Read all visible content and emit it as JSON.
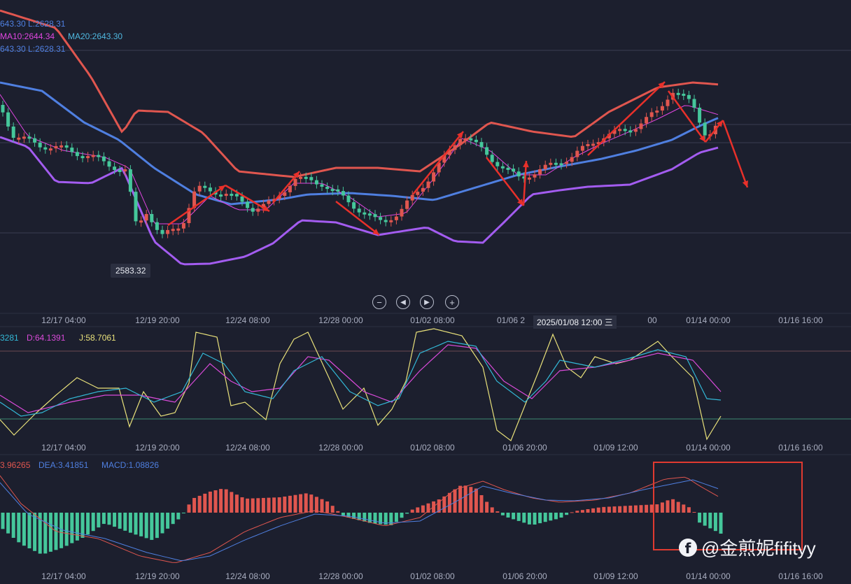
{
  "price_panel": {
    "legend_line1": "643.30  L:2628.31",
    "legend_ma10": "MA10:2644.34",
    "legend_ma20": "MA20:2643.30",
    "legend_line3": "643.30  L:2628.31",
    "low_marker": "2583.32"
  },
  "controls": [
    "zoom-out",
    "step-back",
    "step-forward",
    "zoom-in"
  ],
  "time_axis": {
    "labels": [
      "12/17 04:00",
      "12/19 20:00",
      "12/24 08:00",
      "12/28 00:00",
      "01/02 08:00",
      "01/06 2",
      "01/14 00:00",
      "01/16 16:00"
    ],
    "crosshair_label": "2025/01/08 12:00 三",
    "crosshair_tail": "00"
  },
  "kdj_axis": [
    "12/17 04:00",
    "12/19 20:00",
    "12/24 08:00",
    "12/28 00:00",
    "01/02 08:00",
    "01/06 20:00",
    "01/09 12:00",
    "01/14 00:00",
    "01/16 16:00"
  ],
  "macd_axis": [
    "12/17 04:00",
    "12/19 20:00",
    "12/24 08:00",
    "12/28 00:00",
    "01/02 08:00",
    "01/06 20:00",
    "01/09 12:00",
    "01/14 00:00",
    "01/16 16:00"
  ],
  "kdj_panel": {
    "k": "3281",
    "d": "D:64.1391",
    "j": "J:58.7061"
  },
  "macd_panel": {
    "dif": "3.96265",
    "dea": "DEA:3.41851",
    "macd": "MACD:1.08826"
  },
  "watermark": "@金煎妮fifityy",
  "colors": {
    "bg": "#1c1f2e",
    "up": "#e0564f",
    "down": "#45c79b",
    "upper": "#e0564f",
    "mid": "#4f7fe0",
    "lower": "#a35cf0",
    "ma_pink": "#e046e0",
    "arrow": "#e8302a",
    "kdj_k": "#33b8d6",
    "kdj_d": "#d94ad9",
    "kdj_j": "#e8e07a"
  },
  "chart_data": [
    {
      "type": "candlestick",
      "x": [
        "12/17 04:00",
        "12/19 20:00",
        "12/24 08:00",
        "12/28 00:00",
        "01/02 08:00",
        "01/06 20:00",
        "01/09 12:00",
        "01/14 00:00"
      ],
      "series": [
        {
          "name": "MA10",
          "values": [
            2648,
            2612,
            2625,
            2634,
            2640,
            2646,
            2662,
            2670
          ]
        },
        {
          "name": "MA20",
          "values": [
            2652,
            2618,
            2624,
            2631,
            2636,
            2642,
            2658,
            2668
          ]
        }
      ],
      "annotations": [
        "2583.32"
      ]
    },
    {
      "type": "line",
      "series": [
        {
          "name": "D"
        },
        {
          "name": "J"
        }
      ]
    },
    {
      "type": "bar",
      "series": [
        {
          "name": "DEA"
        },
        {
          "name": "MACD"
        }
      ]
    }
  ]
}
